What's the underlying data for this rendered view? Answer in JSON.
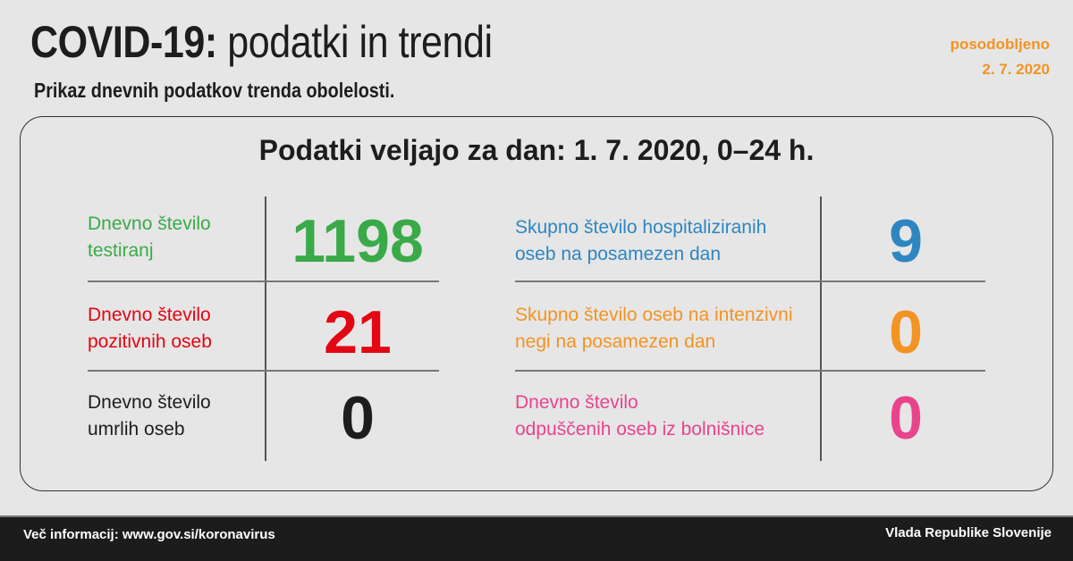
{
  "header": {
    "title_bold": "COVID-19:",
    "title_rest": " podatki in trendi",
    "subtitle": "Prikaz dnevnih podatkov trenda obolelosti.",
    "updated_label": "posodobljeno",
    "updated_date": "2. 7. 2020"
  },
  "card": {
    "title": "Podatki veljajo za dan: 1. 7. 2020, 0–24 h."
  },
  "stats": [
    {
      "line1": "Dnevno število",
      "line2": "testiranj",
      "value": "1198",
      "color": "#3aaa49"
    },
    {
      "line1": "Dnevno število",
      "line2": "pozitivnih oseb",
      "value": "21",
      "color": "#e30613"
    },
    {
      "line1": "Dnevno število",
      "line2": "umrlih oseb",
      "value": "0",
      "color": "#1d1d1b"
    },
    {
      "line1": "Skupno število hospitaliziranih",
      "line2": "oseb na posamezen dan",
      "value": "9",
      "color": "#2e86c1"
    },
    {
      "line1": "Skupno število oseb na intenzivni",
      "line2": "negi na posamezen dan",
      "value": "0",
      "color": "#f39323"
    },
    {
      "line1": "Dnevno število",
      "line2": "odpuščenih oseb iz bolnišnice",
      "value": "0",
      "color": "#e8448c"
    }
  ],
  "footer": {
    "info": "Več informacij: www.gov.si/koronavirus",
    "org": "Vlada Republike Slovenije"
  }
}
